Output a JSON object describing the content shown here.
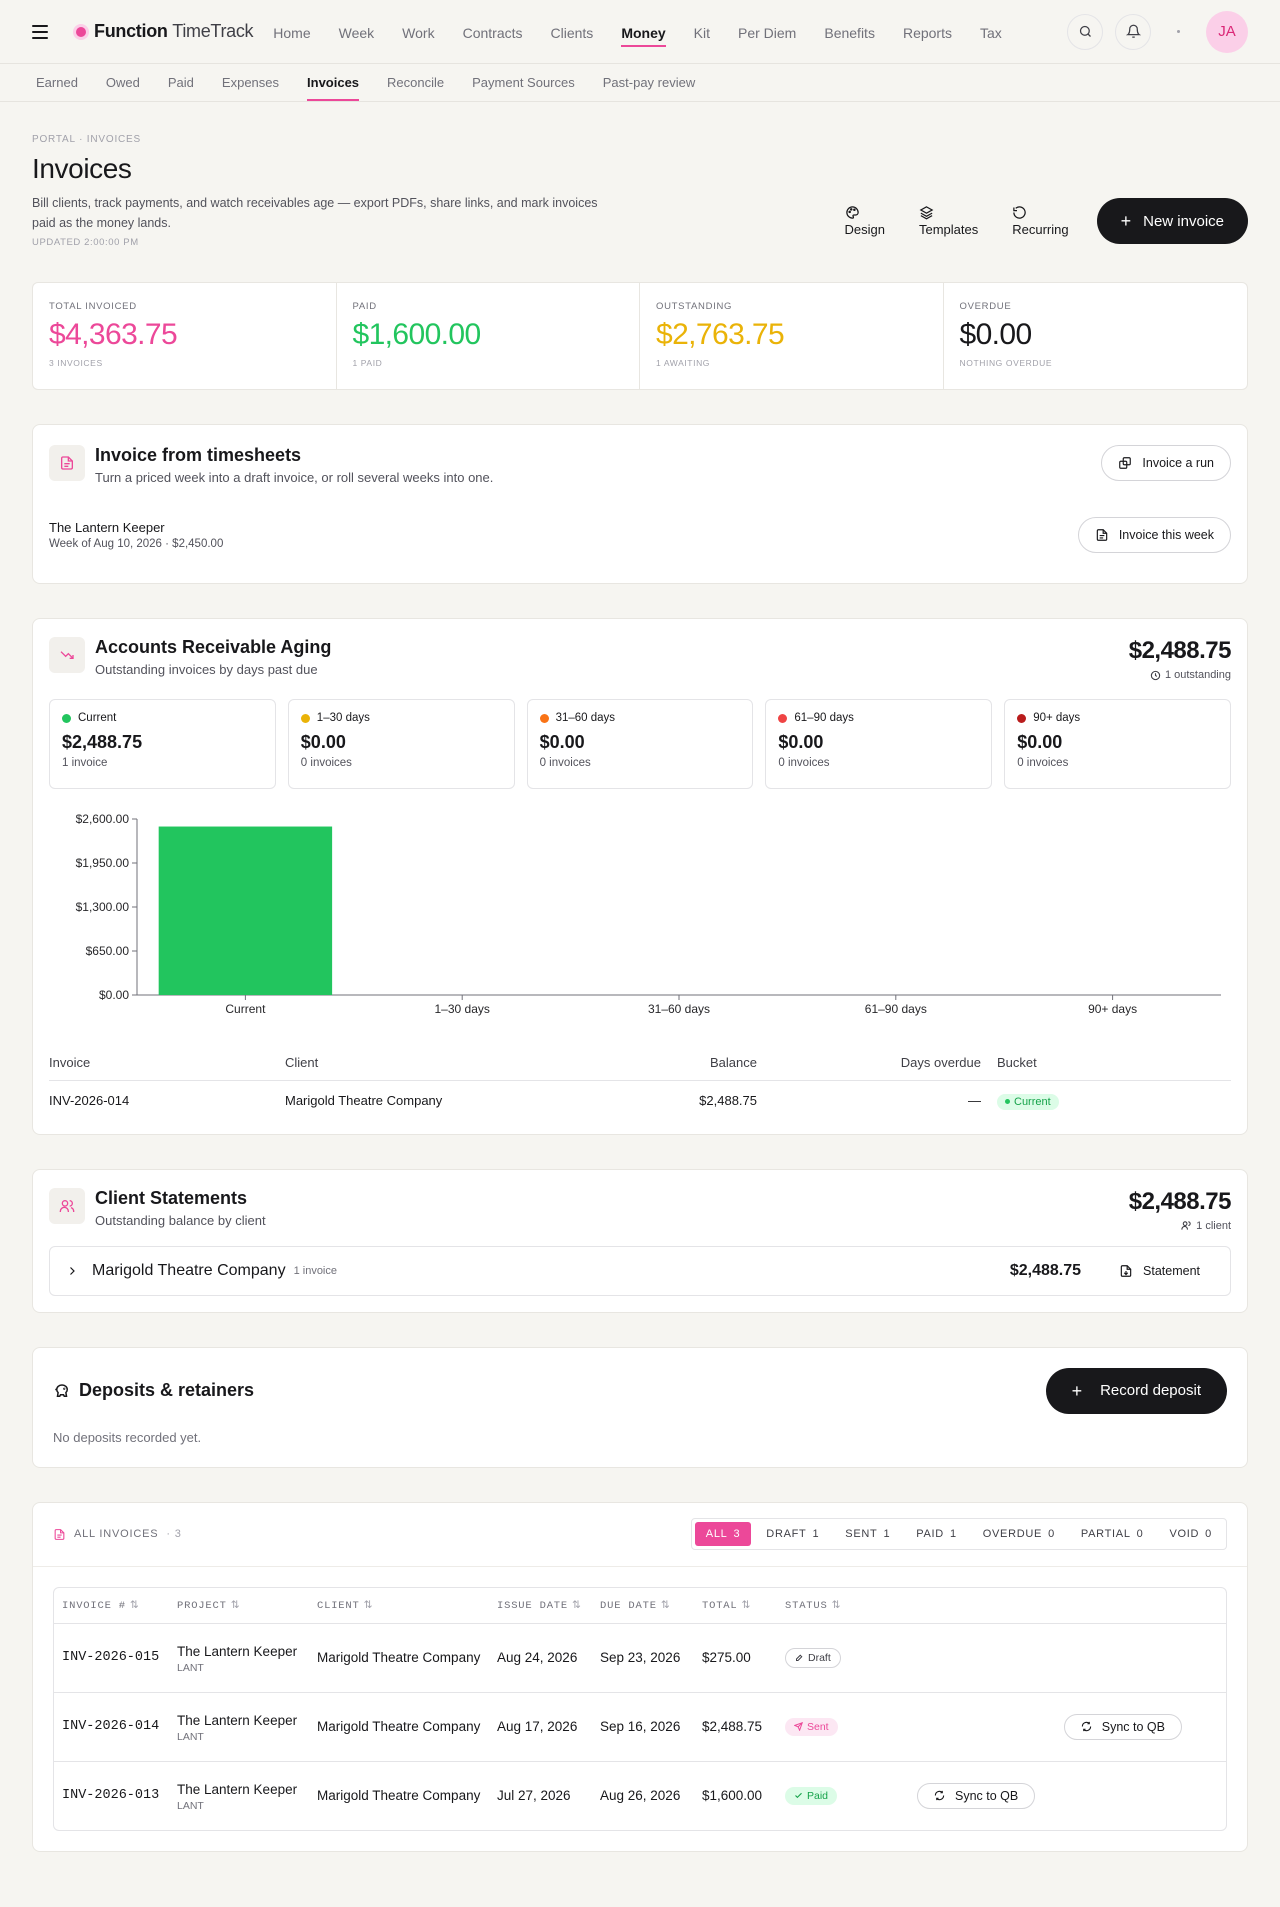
{
  "app": {
    "brand_bold": "Function",
    "brand_light": "TimeTrack",
    "avatar": "JA"
  },
  "nav": [
    "Home",
    "Week",
    "Work",
    "Contracts",
    "Clients",
    "Money",
    "Kit",
    "Per Diem",
    "Benefits",
    "Reports",
    "Tax"
  ],
  "subnav": [
    "Earned",
    "Owed",
    "Paid",
    "Expenses",
    "Invoices",
    "Reconcile",
    "Payment Sources",
    "Past-pay review"
  ],
  "page": {
    "breadcrumb": "Portal · Invoices",
    "title": "Invoices",
    "description": "Bill clients, track payments, and watch receivables age — export PDFs, share links, and mark invoices paid as the money lands.",
    "updated": "Updated 2:00:00 PM",
    "actions": {
      "design": "Design",
      "templates": "Templates",
      "recurring": "Recurring",
      "new_invoice": "New invoice"
    }
  },
  "stats": [
    {
      "label": "Total invoiced",
      "value": "$4,363.75",
      "sub": "3 invoices",
      "color": "#ec4899"
    },
    {
      "label": "Paid",
      "value": "$1,600.00",
      "sub": "1 paid",
      "color": "#22c55e"
    },
    {
      "label": "Outstanding",
      "value": "$2,763.75",
      "sub": "1 awaiting",
      "color": "#eab308"
    },
    {
      "label": "Overdue",
      "value": "$0.00",
      "sub": "Nothing overdue",
      "color": "#18181b"
    }
  ],
  "timesheets": {
    "title": "Invoice from timesheets",
    "subtitle": "Turn a priced week into a draft invoice, or roll several weeks into one.",
    "run_button": "Invoice a run",
    "client": "The Lantern Keeper",
    "meta": "Week of Aug 10, 2026 · $2,450.00",
    "week_button": "Invoice this week"
  },
  "aging": {
    "title": "Accounts Receivable Aging",
    "subtitle": "Outstanding invoices by days past due",
    "total": "$2,488.75",
    "total_sub": "1 outstanding",
    "buckets": [
      {
        "label": "Current",
        "amount": "$2,488.75",
        "count": "1 invoice",
        "color": "#22c55e"
      },
      {
        "label": "1–30 days",
        "amount": "$0.00",
        "count": "0 invoices",
        "color": "#eab308"
      },
      {
        "label": "31–60 days",
        "amount": "$0.00",
        "count": "0 invoices",
        "color": "#f97316"
      },
      {
        "label": "61–90 days",
        "amount": "$0.00",
        "count": "0 invoices",
        "color": "#ef4444"
      },
      {
        "label": "90+ days",
        "amount": "$0.00",
        "count": "0 invoices",
        "color": "#b91c1c"
      }
    ],
    "table": {
      "headers": [
        "Invoice",
        "Client",
        "Balance",
        "Days overdue",
        "Bucket"
      ],
      "rows": [
        {
          "invoice": "INV-2026-014",
          "client": "Marigold Theatre Company",
          "balance": "$2,488.75",
          "days": "—",
          "bucket": "Current"
        }
      ]
    }
  },
  "chart_data": {
    "type": "bar",
    "categories": [
      "Current",
      "1–30 days",
      "31–60 days",
      "61–90 days",
      "90+ days"
    ],
    "values": [
      2488.75,
      0,
      0,
      0,
      0
    ],
    "yticks": [
      "$0.00",
      "$650.00",
      "$1,300.00",
      "$1,950.00",
      "$2,600.00"
    ],
    "ylim": [
      0,
      2600
    ],
    "colors": [
      "#22c55e",
      "#eab308",
      "#f97316",
      "#ef4444",
      "#b91c1c"
    ],
    "title": "",
    "xlabel": "",
    "ylabel": "",
    "grid": false
  },
  "statements": {
    "title": "Client Statements",
    "subtitle": "Outstanding balance by client",
    "total": "$2,488.75",
    "total_sub": "1 client",
    "client": "Marigold Theatre Company",
    "count": "1 invoice",
    "amount": "$2,488.75",
    "button": "Statement"
  },
  "deposits": {
    "title": "Deposits & retainers",
    "button": "Record deposit",
    "empty": "No deposits recorded yet."
  },
  "invoices": {
    "heading": "All invoices",
    "heading_count": "· 3",
    "filters": [
      {
        "label": "All",
        "count": "3"
      },
      {
        "label": "Draft",
        "count": "1"
      },
      {
        "label": "Sent",
        "count": "1"
      },
      {
        "label": "Paid",
        "count": "1"
      },
      {
        "label": "Overdue",
        "count": "0"
      },
      {
        "label": "Partial",
        "count": "0"
      },
      {
        "label": "Void",
        "count": "0"
      }
    ],
    "columns": [
      "Invoice #",
      "Project",
      "Client",
      "Issue date",
      "Due date",
      "Total",
      "Status"
    ],
    "rows": [
      {
        "number": "INV-2026-015",
        "project": "The Lantern Keeper",
        "code": "LANT",
        "client": "Marigold Theatre Company",
        "issue": "Aug 24, 2026",
        "due": "Sep 23, 2026",
        "total": "$275.00",
        "status": "Draft",
        "action": ""
      },
      {
        "number": "INV-2026-014",
        "project": "The Lantern Keeper",
        "code": "LANT",
        "client": "Marigold Theatre Company",
        "issue": "Aug 17, 2026",
        "due": "Sep 16, 2026",
        "total": "$2,488.75",
        "status": "Sent",
        "action": "Sync to QB"
      },
      {
        "number": "INV-2026-013",
        "project": "The Lantern Keeper",
        "code": "LANT",
        "client": "Marigold Theatre Company",
        "issue": "Jul 27, 2026",
        "due": "Aug 26, 2026",
        "total": "$1,600.00",
        "status": "Paid",
        "action": "Sync to QB"
      }
    ]
  }
}
